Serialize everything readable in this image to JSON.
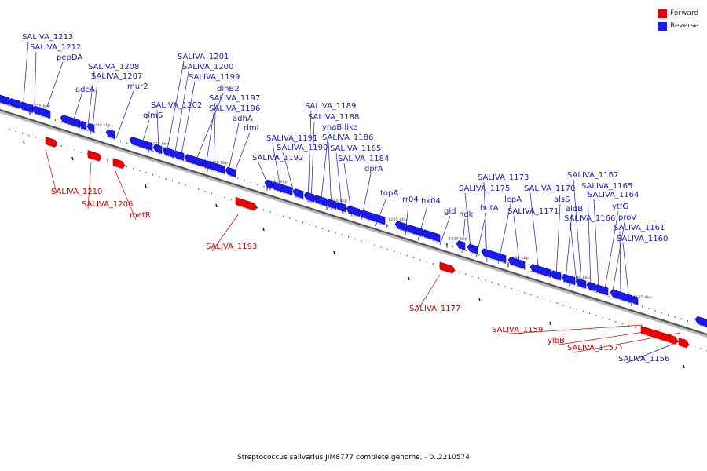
{
  "title": "Streptococcus salivarius JIM8777 complete genome. - 0..2210574",
  "colors": {
    "forward": "#ee0000",
    "reverse": "#1a1aee",
    "forward_label": "#cc0000",
    "reverse_label": "#1a1abb"
  },
  "legend": [
    {
      "label": "Forward",
      "color": "#ee0000"
    },
    {
      "label": "Reverse",
      "color": "#1a1aee"
    }
  ],
  "ticks": [
    "1235 kbp",
    "1230 kbp",
    "1225 kbp",
    "1220 kbp",
    "1215 kbp",
    "1210 kbp",
    "1205 kbp",
    "1200 kbp",
    "1195 kbp",
    "1190 kbp",
    "1185 kbp"
  ],
  "reverse_labels": [
    "SALIVA_1213",
    "SALIVA_1212",
    "pepDA",
    "adcA",
    "SALIVA_1208",
    "SALIVA_1207",
    "mur2",
    "glmS",
    "SALIVA_1202",
    "SALIVA_1201",
    "SALIVA_1200",
    "SALIVA_1199",
    "dinB2",
    "SALIVA_1197",
    "SALIVA_1196",
    "adhA",
    "rimL",
    "SALIVA_1192",
    "SALIVA_1191",
    "SALIVA_1190",
    "SALIVA_1189",
    "SALIVA_1188",
    "ynaB like",
    "SALIVA_1186",
    "SALIVA_1185",
    "SALIVA_1184",
    "dprA",
    "topA",
    "rr04",
    "hk04",
    "gid",
    "ndk",
    "SALIVA_1175",
    "butA",
    "SALIVA_1173",
    "lepA",
    "SALIVA_1171",
    "SALIVA_1170",
    "alsS",
    "aldB",
    "SALIVA_1167",
    "SALIVA_1166",
    "SALIVA_1165",
    "SALIVA_1164",
    "ytfG",
    "proV",
    "SALIVA_1161",
    "SALIVA_1160",
    "SALIVA_1156"
  ],
  "forward_labels": [
    "SALIVA_1210",
    "SALIVA_1206",
    "metR",
    "SALIVA_1193",
    "SALIVA_1177",
    "SALIVA_1159",
    "ylbB",
    "SALIVA_1157"
  ]
}
